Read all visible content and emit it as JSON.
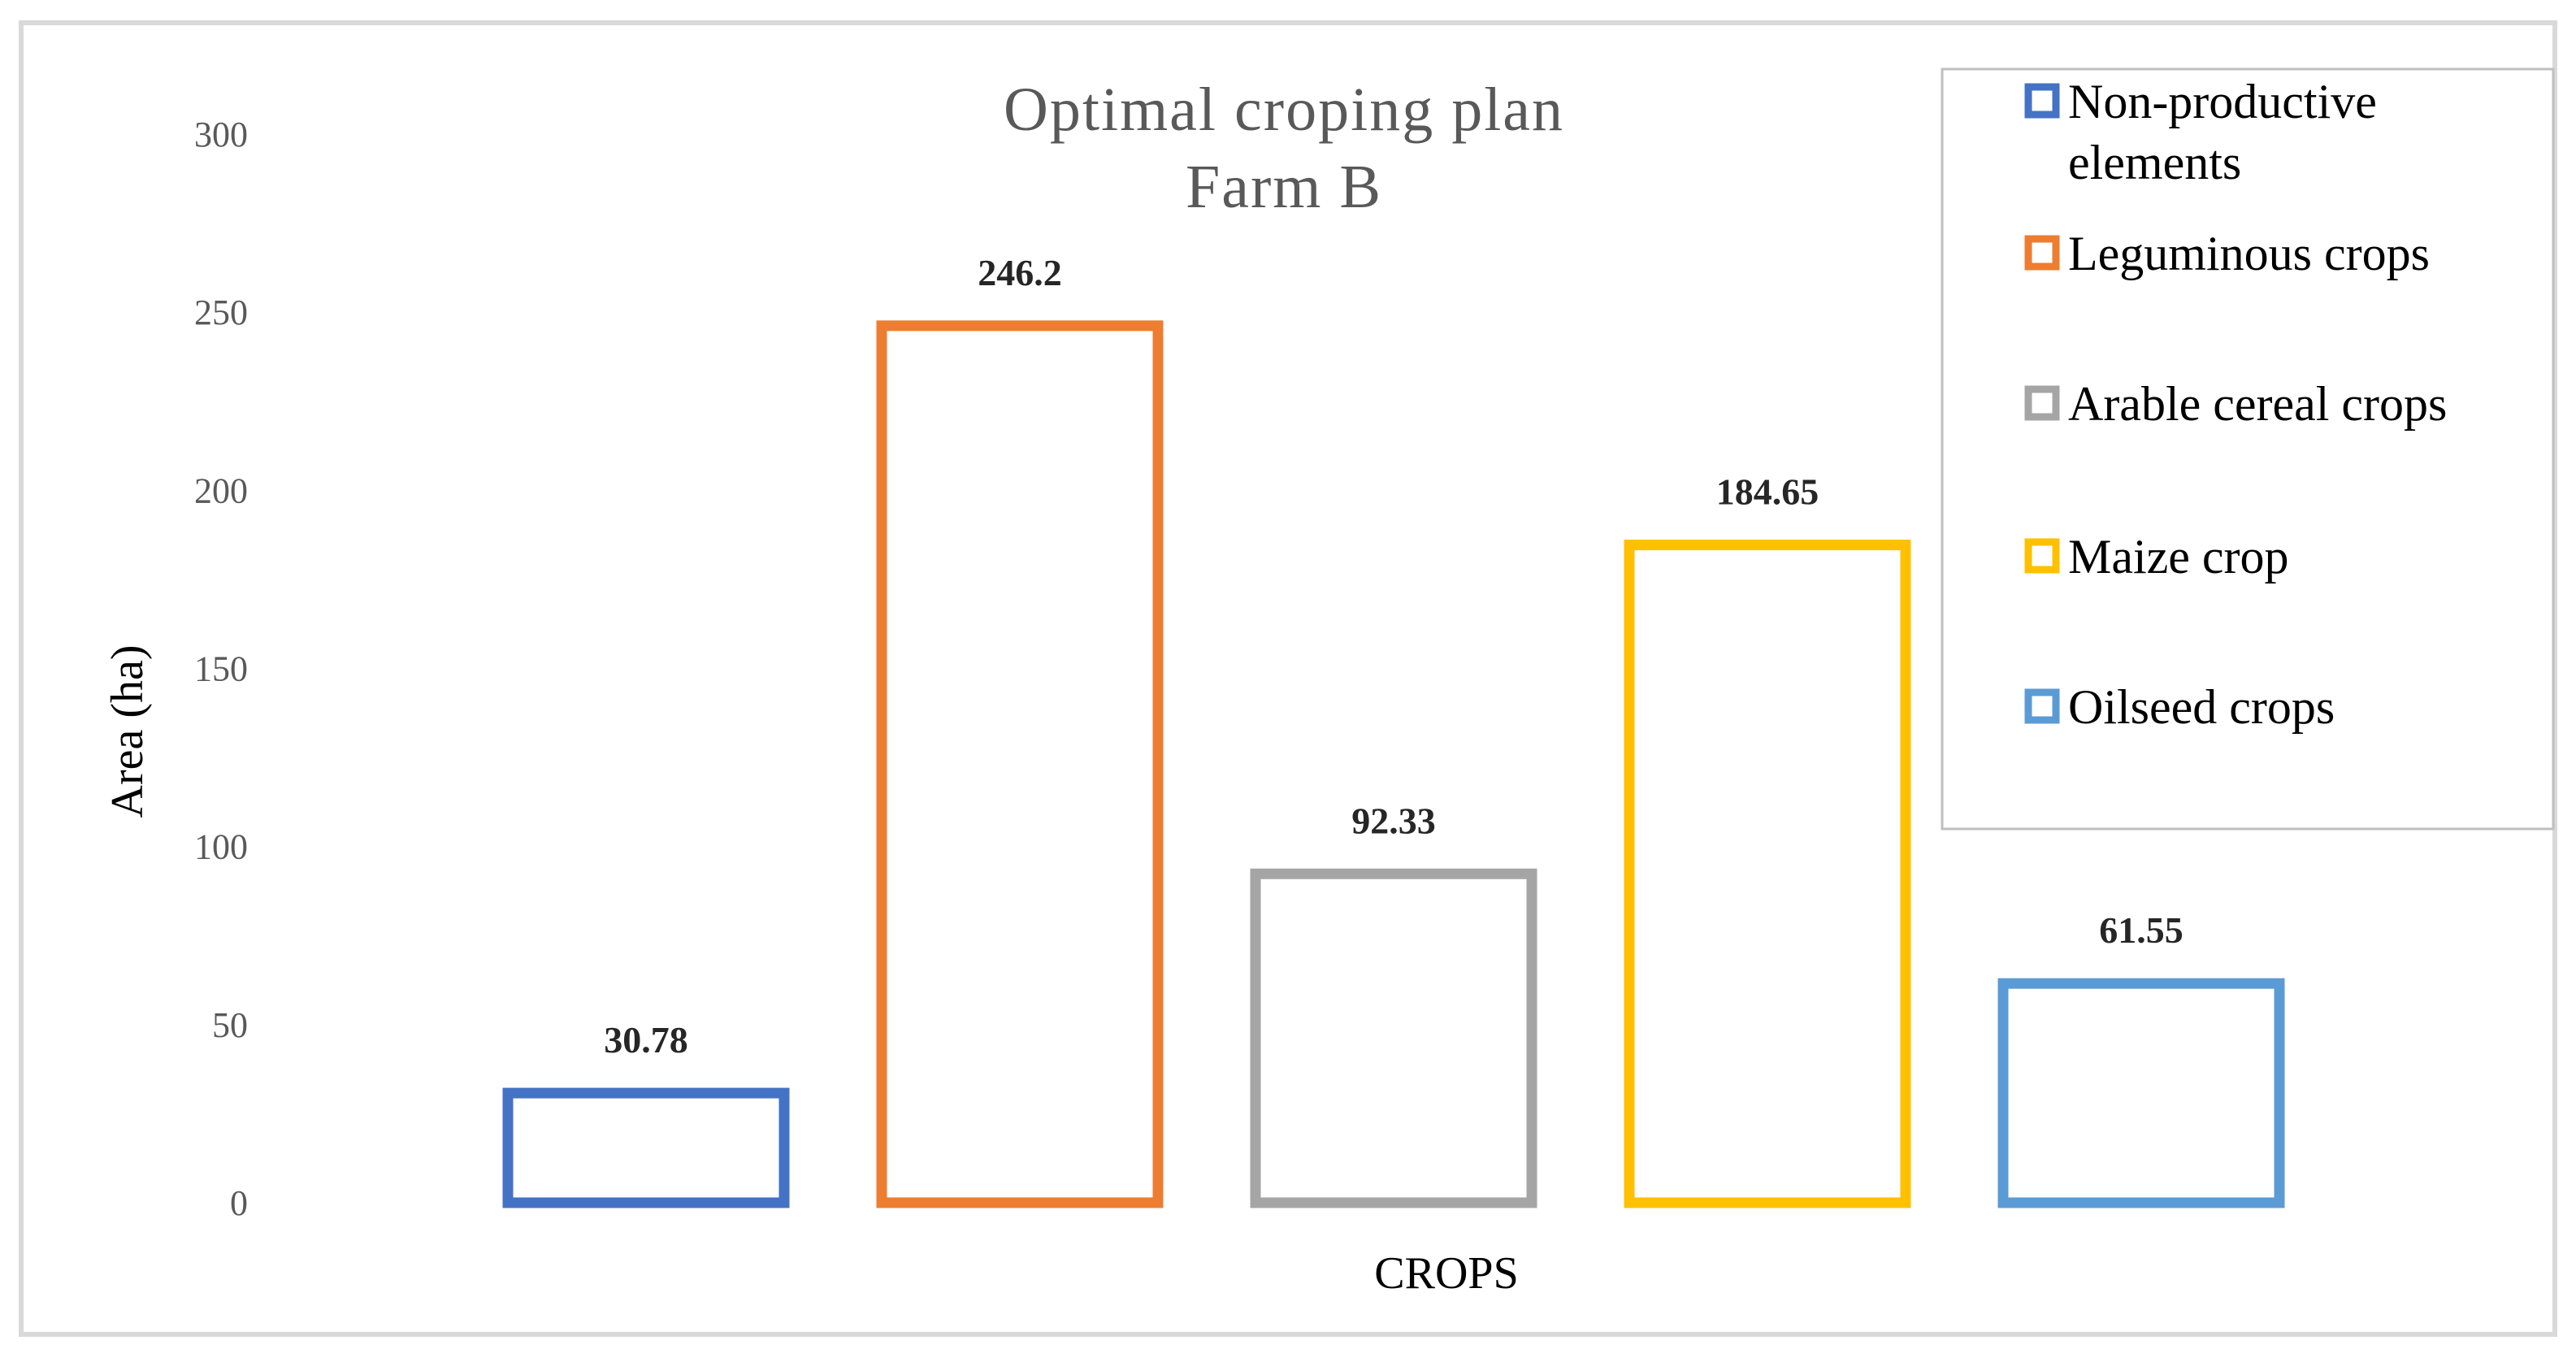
{
  "chart_data": {
    "type": "bar",
    "title": "Optimal croping plan",
    "subtitle": "Farm B",
    "xlabel": "CROPS",
    "ylabel": "Area (ha)",
    "ylim": [
      0,
      300
    ],
    "yticks": [
      "0",
      "50",
      "100",
      "150",
      "200",
      "250",
      "300"
    ],
    "grid": false,
    "legend_position": "top-right",
    "series": [
      {
        "name": "Non-productive elements",
        "legend_lines": [
          "Non-productive",
          "elements"
        ],
        "value": 30.78,
        "label": "30.78",
        "color": "#4472C4"
      },
      {
        "name": "Leguminous crops",
        "legend_lines": [
          "Leguminous crops"
        ],
        "value": 246.2,
        "label": "246.2",
        "color": "#ED7D31"
      },
      {
        "name": "Arable cereal crops",
        "legend_lines": [
          "Arable cereal crops"
        ],
        "value": 92.33,
        "label": "92.33",
        "color": "#A5A5A5"
      },
      {
        "name": "Maize crop",
        "legend_lines": [
          "Maize crop"
        ],
        "value": 184.65,
        "label": "184.65",
        "color": "#FFC000"
      },
      {
        "name": "Oilseed crops",
        "legend_lines": [
          "Oilseed crops"
        ],
        "value": 61.55,
        "label": "61.55",
        "color": "#5B9BD5"
      }
    ]
  }
}
